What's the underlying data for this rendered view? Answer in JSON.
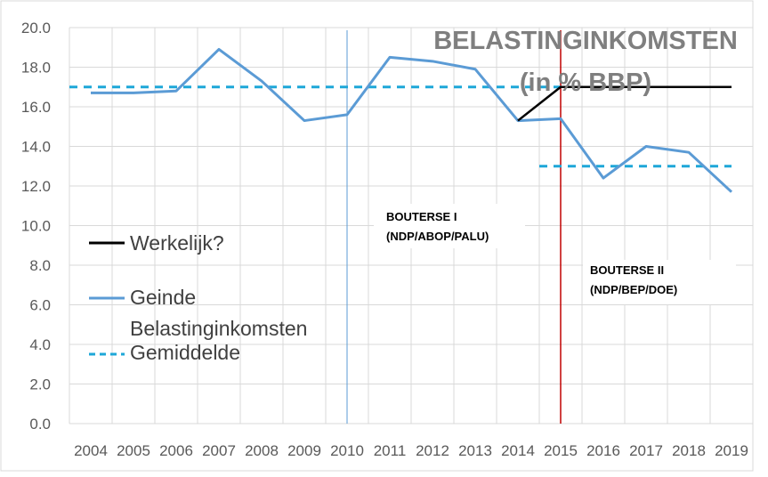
{
  "chart_data": {
    "type": "line",
    "title_line1": "BELASTINGINKOMSTEN",
    "title_line2": "(in % BBP)",
    "categories": [
      "2004",
      "2005",
      "2006",
      "2007",
      "2008",
      "2009",
      "2010",
      "2011",
      "2012",
      "2013",
      "2014",
      "2015",
      "2016",
      "2017",
      "2018",
      "2019"
    ],
    "ylim": [
      0,
      20
    ],
    "yticks": [
      "0.0",
      "2.0",
      "4.0",
      "6.0",
      "8.0",
      "10.0",
      "12.0",
      "14.0",
      "16.0",
      "18.0",
      "20.0"
    ],
    "grid": true,
    "series": [
      {
        "name": "Werkelijk?",
        "color": "#000000",
        "style": "solid",
        "points": [
          [
            "2014",
            15.3
          ],
          [
            "2015",
            17.0
          ],
          [
            "2019",
            17.0
          ]
        ]
      },
      {
        "name": "Geinde Belastinginkomsten",
        "color": "#5b9bd5",
        "style": "solid",
        "points": [
          [
            "2004",
            16.7
          ],
          [
            "2005",
            16.7
          ],
          [
            "2006",
            16.8
          ],
          [
            "2007",
            18.9
          ],
          [
            "2008",
            17.3
          ],
          [
            "2009",
            15.3
          ],
          [
            "2010",
            15.6
          ],
          [
            "2011",
            18.5
          ],
          [
            "2012",
            18.3
          ],
          [
            "2013",
            17.9
          ],
          [
            "2014",
            15.3
          ],
          [
            "2015",
            15.4
          ],
          [
            "2016",
            12.4
          ],
          [
            "2017",
            14.0
          ],
          [
            "2018",
            13.7
          ],
          [
            "2019",
            11.7
          ]
        ]
      },
      {
        "name": "Gemiddelde",
        "color": "#1ea7d8",
        "style": "dashed",
        "segments": [
          {
            "from": "2004",
            "to": "2015",
            "value": 17.0
          },
          {
            "from": "2015",
            "to": "2019",
            "value": 13.0
          }
        ]
      }
    ],
    "legend": [
      {
        "label": "Werkelijk?",
        "color": "#000000",
        "style": "solid"
      },
      {
        "label": "Geinde",
        "label2": "Belastinginkomsten",
        "color": "#5b9bd5",
        "style": "solid"
      },
      {
        "label": "Gemiddelde",
        "color": "#1ea7d8",
        "style": "dashed"
      }
    ],
    "markers": [
      {
        "x": "2010",
        "color": "#5b9bd5"
      },
      {
        "x": "2015",
        "color": "#c00000"
      }
    ],
    "annotations": [
      {
        "line1": "BOUTERSE I",
        "line2": "(NDP/ABOP/PALU)"
      },
      {
        "line1": "BOUTERSE II",
        "line2": "(NDP/BEP/DOE)"
      }
    ]
  }
}
